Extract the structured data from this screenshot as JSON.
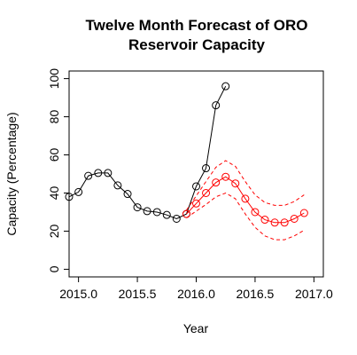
{
  "chart_data": {
    "type": "line",
    "title_lines": [
      "Twelve Month Forecast of ORO",
      "Reservoir Capacity"
    ],
    "xlabel": "Year",
    "ylabel": "Capacity (Percentage)",
    "xlim": [
      2014.92,
      2017.08
    ],
    "ylim": [
      -4,
      104
    ],
    "xticks": [
      2015.0,
      2015.5,
      2016.0,
      2016.5,
      2017.0
    ],
    "xtick_labels": [
      "2015.0",
      "2015.5",
      "2016.0",
      "2016.5",
      "2017.0"
    ],
    "yticks": [
      0,
      20,
      40,
      60,
      80,
      100
    ],
    "ytick_labels": [
      "0",
      "20",
      "40",
      "60",
      "80",
      "100"
    ],
    "grid": false,
    "series": [
      {
        "role": "observed",
        "color": "#000000",
        "x": [
          2014.92,
          2015.0,
          2015.083,
          2015.167,
          2015.25,
          2015.333,
          2015.417,
          2015.5,
          2015.583,
          2015.667,
          2015.75,
          2015.833,
          2015.917,
          2016.0,
          2016.083,
          2016.167,
          2016.25
        ],
        "y": [
          38,
          40.5,
          49,
          50.5,
          50.5,
          44,
          39.5,
          32.5,
          30.5,
          30,
          28.5,
          26.5,
          29,
          43.5,
          53,
          86,
          96
        ]
      },
      {
        "role": "forecast",
        "color": "#ff0000",
        "x": [
          2015.917,
          2016.0,
          2016.083,
          2016.167,
          2016.25,
          2016.333,
          2016.417,
          2016.5,
          2016.583,
          2016.667,
          2016.75,
          2016.833,
          2016.917
        ],
        "y": [
          29,
          34.5,
          40,
          45.5,
          48.5,
          45,
          37,
          30,
          26,
          24.5,
          24.5,
          26.5,
          29.5
        ]
      },
      {
        "role": "upper-bound",
        "color": "#ff0000",
        "x": [
          2015.917,
          2016.0,
          2016.083,
          2016.167,
          2016.25,
          2016.333,
          2016.417,
          2016.5,
          2016.583,
          2016.667,
          2016.75,
          2016.833,
          2016.917
        ],
        "y": [
          31,
          38.5,
          46,
          53.5,
          57,
          54,
          46,
          39,
          35,
          33.5,
          33.5,
          35.5,
          39
        ]
      },
      {
        "role": "lower-bound",
        "color": "#ff0000",
        "x": [
          2015.917,
          2016.0,
          2016.083,
          2016.167,
          2016.25,
          2016.333,
          2016.417,
          2016.5,
          2016.583,
          2016.667,
          2016.75,
          2016.833,
          2016.917
        ],
        "y": [
          27,
          30.5,
          34,
          38,
          40,
          37,
          29,
          22,
          17.5,
          15.5,
          15.5,
          17.5,
          20.5
        ]
      }
    ]
  }
}
